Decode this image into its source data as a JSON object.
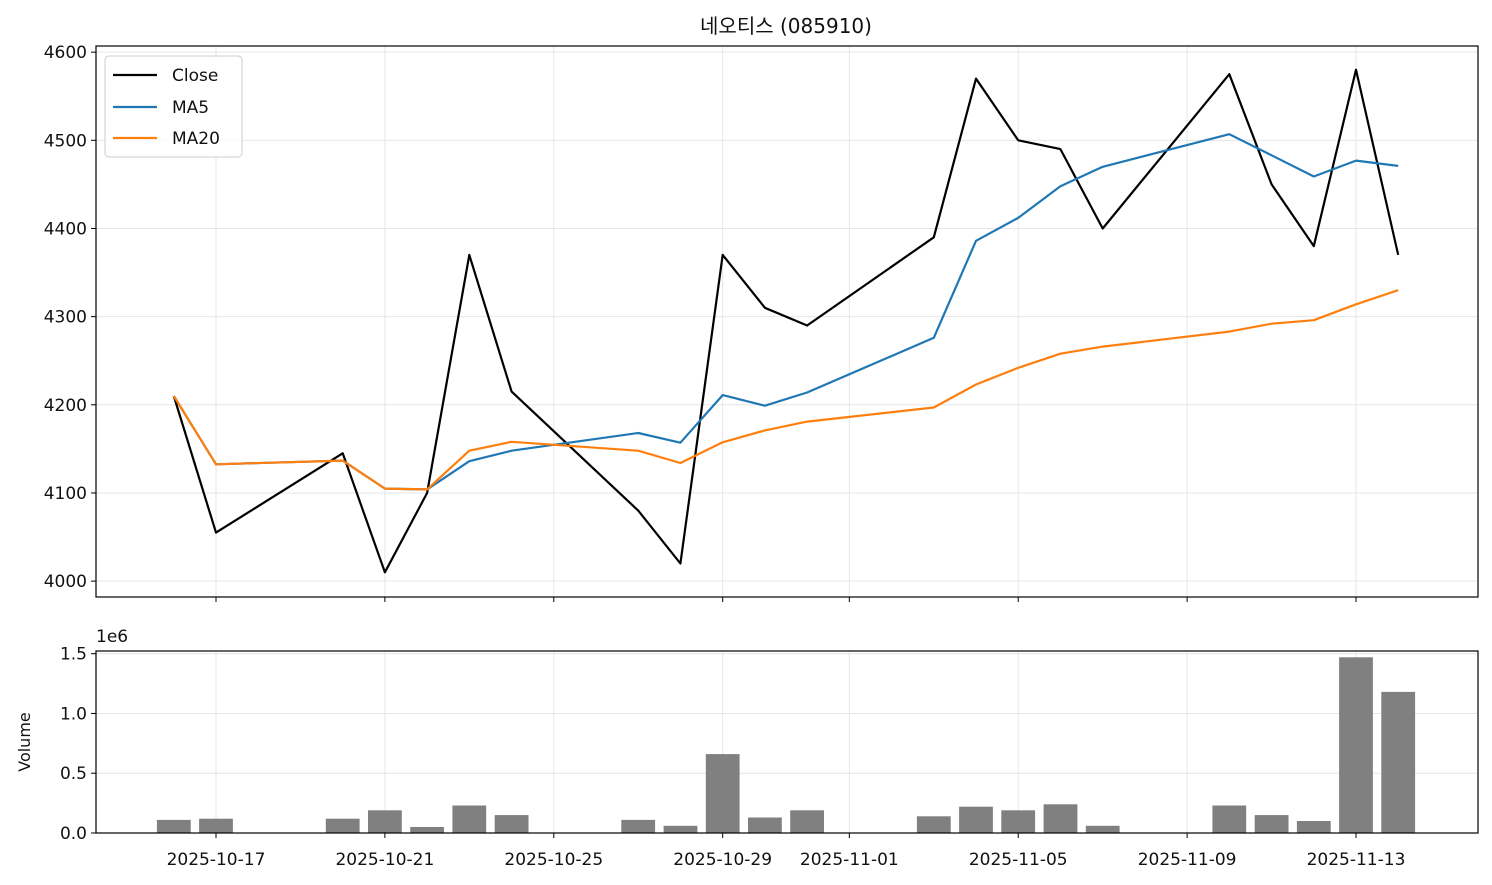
{
  "chart_data": [
    {
      "type": "line",
      "title": "네오티스 (085910)",
      "xlabel": "",
      "ylabel": "",
      "ylim": [
        3982,
        4607
      ],
      "yticks": [
        4000,
        4100,
        4200,
        4300,
        4400,
        4500,
        4600
      ],
      "grid": true,
      "legend": "top-left",
      "x": [
        "2025-10-16",
        "2025-10-17",
        "2025-10-20",
        "2025-10-21",
        "2025-10-22",
        "2025-10-23",
        "2025-10-24",
        "2025-10-27",
        "2025-10-28",
        "2025-10-29",
        "2025-10-30",
        "2025-10-31",
        "2025-11-03",
        "2025-11-04",
        "2025-11-05",
        "2025-11-06",
        "2025-11-07",
        "2025-11-10",
        "2025-11-11",
        "2025-11-12",
        "2025-11-13",
        "2025-11-14"
      ],
      "series": [
        {
          "name": "Close",
          "color": "#000000",
          "values": [
            4210,
            4055,
            4145,
            4010,
            4100,
            4370,
            4215,
            4080,
            4020,
            4370,
            4310,
            4290,
            4390,
            4570,
            4500,
            4490,
            4400,
            4575,
            4450,
            4380,
            4580,
            4370
          ]
        },
        {
          "name": "MA5",
          "color": "#1f77b4",
          "values": [
            4210,
            4132.5,
            4136.7,
            4105,
            4104,
            4136,
            4148,
            4168,
            4157,
            4211,
            4199,
            4214,
            4276,
            4386,
            4412,
            4448,
            4470,
            4507,
            4483,
            4459,
            4477,
            4471
          ]
        },
        {
          "name": "MA20",
          "color": "#ff7f0e",
          "values": [
            4210,
            4132.5,
            4136.7,
            4105,
            4104,
            4148,
            4158,
            4148,
            4134,
            4157.5,
            4171,
            4181,
            4197,
            4223,
            4242,
            4258,
            4266,
            4283,
            4292,
            4296,
            4314,
            4330
          ]
        }
      ]
    },
    {
      "type": "bar",
      "xlabel": "",
      "ylabel": "Volume",
      "offset_text": "1e6",
      "ylim": [
        0,
        1.5225
      ],
      "yticks": [
        "0.0",
        "0.5",
        "1.0",
        "1.5"
      ],
      "color": "#808080",
      "grid": true,
      "x": [
        "2025-10-16",
        "2025-10-17",
        "2025-10-20",
        "2025-10-21",
        "2025-10-22",
        "2025-10-23",
        "2025-10-24",
        "2025-10-27",
        "2025-10-28",
        "2025-10-29",
        "2025-10-30",
        "2025-10-31",
        "2025-11-03",
        "2025-11-04",
        "2025-11-05",
        "2025-11-06",
        "2025-11-07",
        "2025-11-10",
        "2025-11-11",
        "2025-11-12",
        "2025-11-13",
        "2025-11-14"
      ],
      "values": [
        0.11,
        0.12,
        0.12,
        0.19,
        0.05,
        0.23,
        0.15,
        0.11,
        0.06,
        0.66,
        0.13,
        0.19,
        0.14,
        0.22,
        0.19,
        0.24,
        0.06,
        0.23,
        0.15,
        0.1,
        1.47,
        1.18
      ],
      "xticks": [
        "2025-10-17",
        "2025-10-21",
        "2025-10-25",
        "2025-10-29",
        "2025-11-01",
        "2025-11-05",
        "2025-11-09",
        "2025-11-13"
      ]
    }
  ]
}
